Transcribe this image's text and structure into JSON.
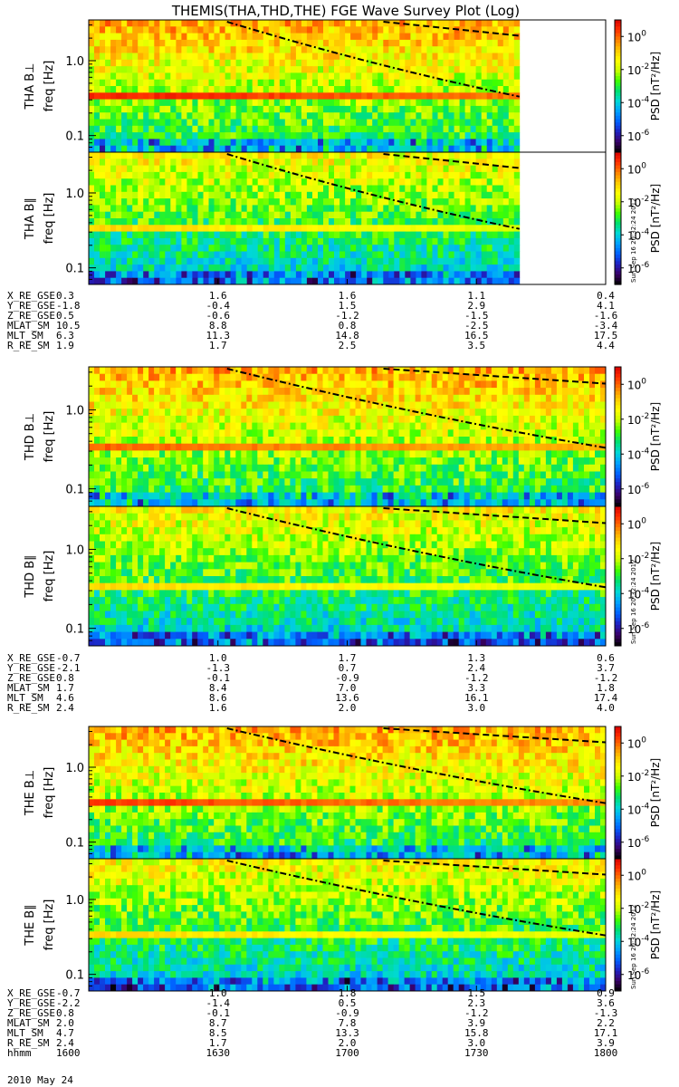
{
  "title": "THEMIS(THA,THD,THE) FGE Wave Survey Plot (Log)",
  "stamp": "Sun Sep 16 20:32:24 2012",
  "date_label": "2010 May 24",
  "colors": {
    "colormap": [
      "#000000",
      "#3b0066",
      "#2020c0",
      "#0060ff",
      "#00a0ff",
      "#00d8d8",
      "#00e070",
      "#40ff00",
      "#c8ff00",
      "#ffff00",
      "#ffc800",
      "#ff8000",
      "#ff3000",
      "#d80000"
    ]
  },
  "chart_data": [
    {
      "type": "heatmap",
      "panels": [
        {
          "probe": "THA",
          "component": "B⊥",
          "ylabel": "freq [Hz]",
          "colorbar_label": "PSD [nT²/Hz]",
          "ytick_labels": [
            "0.1",
            "1.0"
          ],
          "cbar_tick_labels": [
            "10^0",
            "10^-2",
            "10^-4",
            "10^-6"
          ],
          "data_end_hhmm": "1740",
          "band_hz": 0.32,
          "baseline_level": 0.45,
          "band_level": 0.95
        },
        {
          "probe": "THA",
          "component": "B∥",
          "ylabel": "freq [Hz]",
          "colorbar_label": "PSD [nT²/Hz]",
          "ytick_labels": [
            "0.1",
            "1.0"
          ],
          "cbar_tick_labels": [
            "10^0",
            "10^-2",
            "10^-4",
            "10^-6"
          ],
          "data_end_hhmm": "1740",
          "band_hz": 0.32,
          "baseline_level": 0.35,
          "band_level": 0.75
        }
      ],
      "ylim_hz": [
        0.06,
        3.5
      ],
      "zlim_psd": [
        1e-07,
        10.0
      ],
      "zscale": "log",
      "yscale": "log",
      "orbit_table": {
        "rows": [
          {
            "label": "X_RE_GSE",
            "values": [
              "0.3",
              "1.6",
              "1.6",
              "1.1",
              "0.4"
            ]
          },
          {
            "label": "Y_RE_GSE",
            "values": [
              "-1.8",
              "-0.4",
              "1.5",
              "2.9",
              "4.1"
            ]
          },
          {
            "label": "Z_RE_GSE",
            "values": [
              "0.5",
              "-0.6",
              "-1.2",
              "-1.5",
              "-1.6"
            ]
          },
          {
            "label": "MLAT_SM",
            "values": [
              "10.5",
              "8.8",
              "0.8",
              "-2.5",
              "-3.4"
            ]
          },
          {
            "label": "MLT_SM",
            "values": [
              "6.3",
              "11.3",
              "14.8",
              "16.5",
              "17.5"
            ]
          },
          {
            "label": "R_RE_SM",
            "values": [
              "1.9",
              "1.7",
              "2.5",
              "3.5",
              "4.4"
            ]
          }
        ]
      }
    },
    {
      "type": "heatmap",
      "panels": [
        {
          "probe": "THD",
          "component": "B⊥",
          "ylabel": "freq [Hz]",
          "colorbar_label": "PSD [nT²/Hz]",
          "ytick_labels": [
            "0.1",
            "1.0"
          ],
          "cbar_tick_labels": [
            "10^0",
            "10^-2",
            "10^-4",
            "10^-6"
          ],
          "data_end_hhmm": "1800",
          "band_hz": 0.32,
          "baseline_level": 0.45,
          "band_level": 0.88
        },
        {
          "probe": "THD",
          "component": "B∥",
          "ylabel": "freq [Hz]",
          "colorbar_label": "PSD [nT²/Hz]",
          "ytick_labels": [
            "0.1",
            "1.0"
          ],
          "cbar_tick_labels": [
            "10^0",
            "10^-2",
            "10^-4",
            "10^-6"
          ],
          "data_end_hhmm": "1800",
          "band_hz": 0.32,
          "baseline_level": 0.35,
          "band_level": 0.75
        }
      ],
      "ylim_hz": [
        0.06,
        3.5
      ],
      "zlim_psd": [
        1e-07,
        10.0
      ],
      "zscale": "log",
      "yscale": "log",
      "orbit_table": {
        "rows": [
          {
            "label": "X_RE_GSE",
            "values": [
              "-0.7",
              "1.0",
              "1.7",
              "1.3",
              "0.6"
            ]
          },
          {
            "label": "Y_RE_GSE",
            "values": [
              "-2.1",
              "-1.3",
              "0.7",
              "2.4",
              "3.7"
            ]
          },
          {
            "label": "Z_RE_GSE",
            "values": [
              "0.8",
              "-0.1",
              "-0.9",
              "-1.2",
              "-1.2"
            ]
          },
          {
            "label": "MLAT_SM",
            "values": [
              "1.7",
              "8.4",
              "7.0",
              "3.3",
              "1.8"
            ]
          },
          {
            "label": "MLT_SM",
            "values": [
              "4.6",
              "8.6",
              "13.6",
              "16.1",
              "17.4"
            ]
          },
          {
            "label": "R_RE_SM",
            "values": [
              "2.4",
              "1.6",
              "2.0",
              "3.0",
              "4.0"
            ]
          }
        ]
      }
    },
    {
      "type": "heatmap",
      "panels": [
        {
          "probe": "THE",
          "component": "B⊥",
          "ylabel": "freq [Hz]",
          "colorbar_label": "PSD [nT²/Hz]",
          "ytick_labels": [
            "0.1",
            "1.0"
          ],
          "cbar_tick_labels": [
            "10^0",
            "10^-2",
            "10^-4",
            "10^-6"
          ],
          "data_end_hhmm": "1800",
          "band_hz": 0.32,
          "baseline_level": 0.45,
          "band_level": 0.92
        },
        {
          "probe": "THE",
          "component": "B∥",
          "ylabel": "freq [Hz]",
          "colorbar_label": "PSD [nT²/Hz]",
          "ytick_labels": [
            "0.1",
            "1.0"
          ],
          "cbar_tick_labels": [
            "10^0",
            "10^-2",
            "10^-4",
            "10^-6"
          ],
          "data_end_hhmm": "1800",
          "band_hz": 0.32,
          "baseline_level": 0.35,
          "band_level": 0.75
        }
      ],
      "ylim_hz": [
        0.06,
        3.5
      ],
      "zlim_psd": [
        1e-07,
        10.0
      ],
      "zscale": "log",
      "yscale": "log",
      "orbit_table": {
        "rows": [
          {
            "label": "X_RE_GSE",
            "values": [
              "-0.7",
              "1.0",
              "1.8",
              "1.5",
              "0.9"
            ]
          },
          {
            "label": "Y_RE_GSE",
            "values": [
              "-2.2",
              "-1.4",
              "0.5",
              "2.3",
              "3.6"
            ]
          },
          {
            "label": "Z_RE_GSE",
            "values": [
              "0.8",
              "-0.1",
              "-0.9",
              "-1.2",
              "-1.3"
            ]
          },
          {
            "label": "MLAT_SM",
            "values": [
              "2.0",
              "8.7",
              "7.8",
              "3.9",
              "2.2"
            ]
          },
          {
            "label": "MLT_SM",
            "values": [
              "4.7",
              "8.5",
              "13.3",
              "15.8",
              "17.1"
            ]
          },
          {
            "label": "R_RE_SM",
            "values": [
              "2.4",
              "1.7",
              "2.0",
              "3.0",
              "3.9"
            ]
          }
        ],
        "time_row": {
          "label": "hhmm",
          "values": [
            "1600",
            "1630",
            "1700",
            "1730",
            "1800"
          ]
        }
      }
    }
  ]
}
